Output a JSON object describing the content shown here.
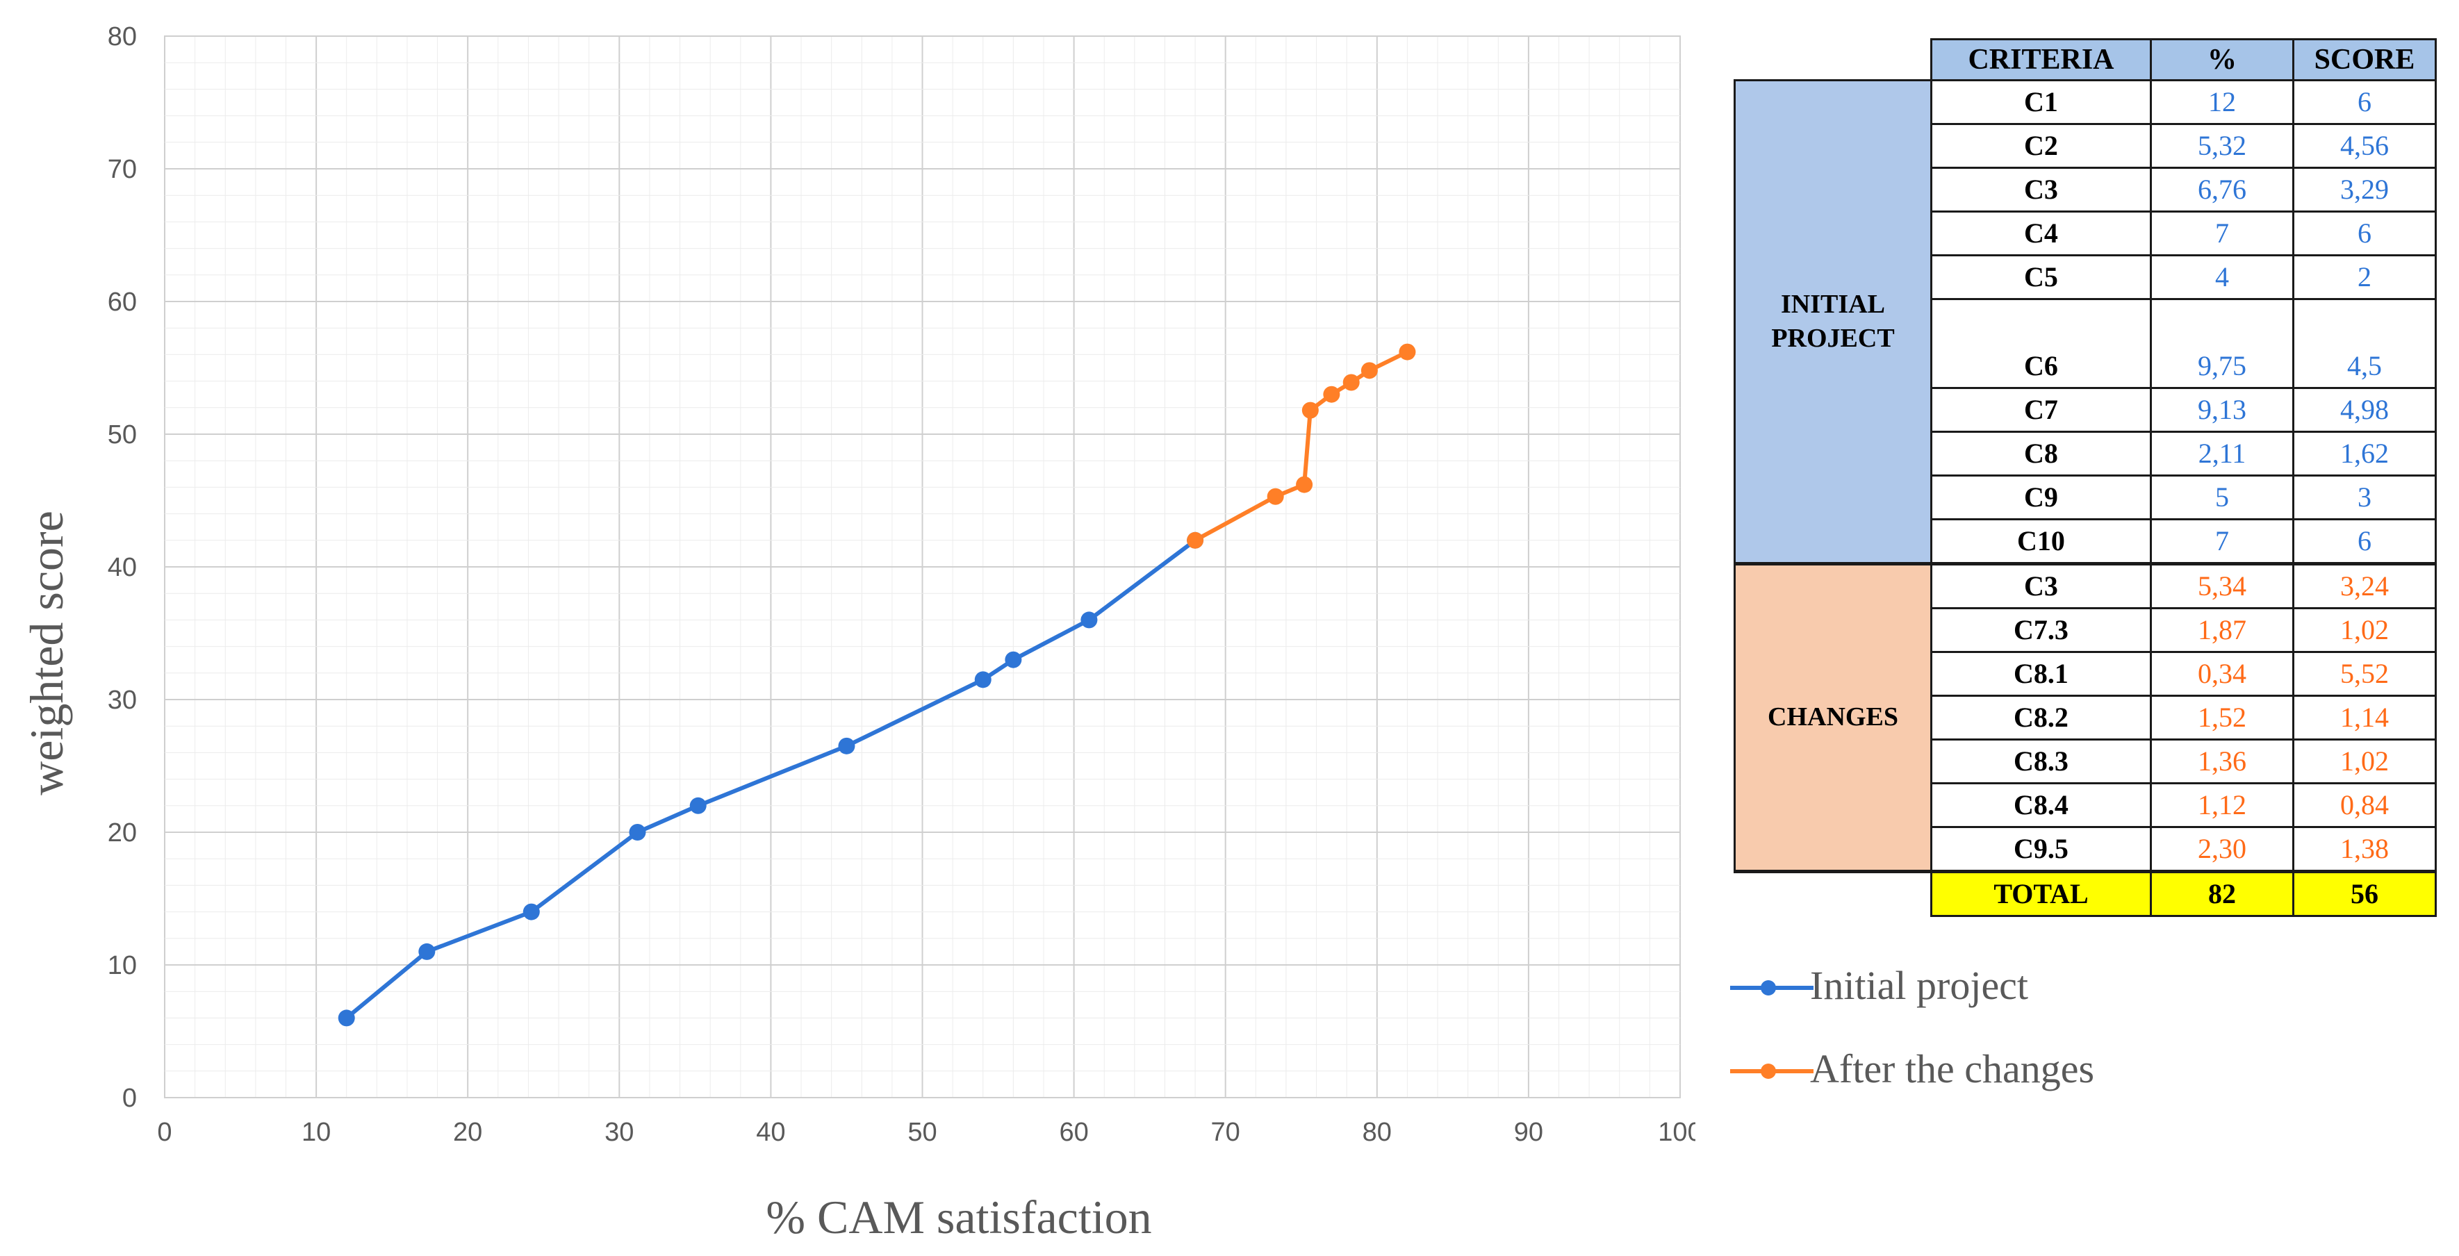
{
  "chart_data": {
    "type": "line",
    "xlabel": "% CAM satisfaction",
    "ylabel": "weighted score",
    "xlim": [
      0,
      100
    ],
    "ylim": [
      0,
      80
    ],
    "x_major": 10,
    "y_major": 10,
    "x_minor": 2,
    "y_minor": 2,
    "grid": true,
    "legend_position": "right",
    "series": [
      {
        "name": "Initial project",
        "color": "#2e75d6",
        "points": [
          [
            12,
            6
          ],
          [
            17.3,
            11
          ],
          [
            24.2,
            14
          ],
          [
            31.2,
            20
          ],
          [
            35.2,
            22
          ],
          [
            45,
            26.5
          ],
          [
            54,
            31.5
          ],
          [
            56,
            33
          ],
          [
            61,
            36
          ],
          [
            68,
            42
          ]
        ]
      },
      {
        "name": "After the changes",
        "color": "#ff7f27",
        "points": [
          [
            68,
            42
          ],
          [
            73.3,
            45.3
          ],
          [
            75.2,
            46.2
          ],
          [
            75.6,
            51.8
          ],
          [
            77,
            53
          ],
          [
            78.3,
            53.9
          ],
          [
            79.5,
            54.8
          ],
          [
            82,
            56.2
          ]
        ]
      }
    ]
  },
  "table": {
    "headers": [
      "CRITERIA",
      "%",
      "SCORE"
    ],
    "initial_label": "INITIAL PROJECT",
    "changes_label": "CHANGES",
    "initial_rows": [
      [
        "C1",
        "12",
        "6"
      ],
      [
        "C2",
        "5,32",
        "4,56"
      ],
      [
        "C3",
        "6,76",
        "3,29"
      ],
      [
        "C4",
        "7",
        "6"
      ],
      [
        "C5",
        "4",
        "2"
      ],
      [
        "C6",
        "9,75",
        "4,5"
      ],
      [
        "C7",
        "9,13",
        "4,98"
      ],
      [
        "C8",
        "2,11",
        "1,62"
      ],
      [
        "C9",
        "5",
        "3"
      ],
      [
        "C10",
        "7",
        "6"
      ]
    ],
    "changes_rows": [
      [
        "C3",
        "5,34",
        "3,24"
      ],
      [
        "C7.3",
        "1,87",
        "1,02"
      ],
      [
        "C8.1",
        "0,34",
        "5,52"
      ],
      [
        "C8.2",
        "1,52",
        "1,14"
      ],
      [
        "C8.3",
        "1,36",
        "1,02"
      ],
      [
        "C8.4",
        "1,12",
        "0,84"
      ],
      [
        "C9.5",
        "2,30",
        "1,38"
      ]
    ],
    "total": [
      "TOTAL",
      "82",
      "56"
    ]
  }
}
